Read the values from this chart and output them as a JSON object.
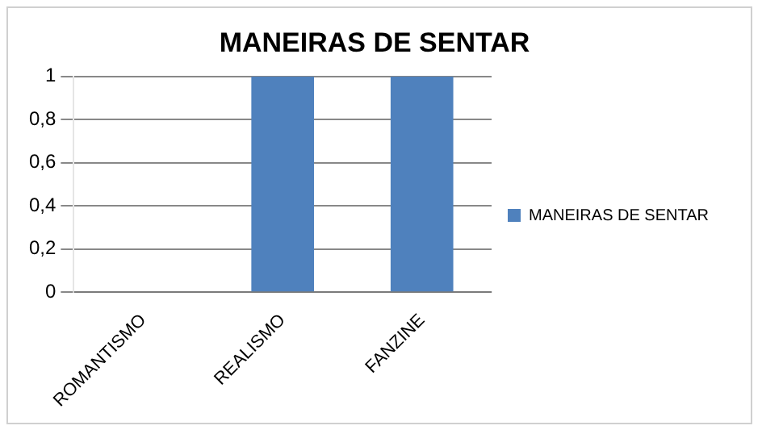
{
  "chart_data": {
    "type": "bar",
    "title": "MANEIRAS DE SENTAR",
    "categories": [
      "ROMANTISMO",
      "REALISMO",
      "FANZINE"
    ],
    "series": [
      {
        "name": "MANEIRAS DE SENTAR",
        "color": "#4f81bd",
        "values": [
          0,
          1,
          1
        ]
      }
    ],
    "ylim": [
      0,
      1
    ],
    "yticks": [
      0,
      {
        "value": 0.2,
        "label": "0,2"
      },
      {
        "value": 0.4,
        "label": "0,4"
      },
      {
        "value": 0.6,
        "label": "0,6"
      },
      {
        "value": 0.8,
        "label": "0,8"
      },
      1
    ],
    "grid": "y",
    "legend": "right"
  }
}
